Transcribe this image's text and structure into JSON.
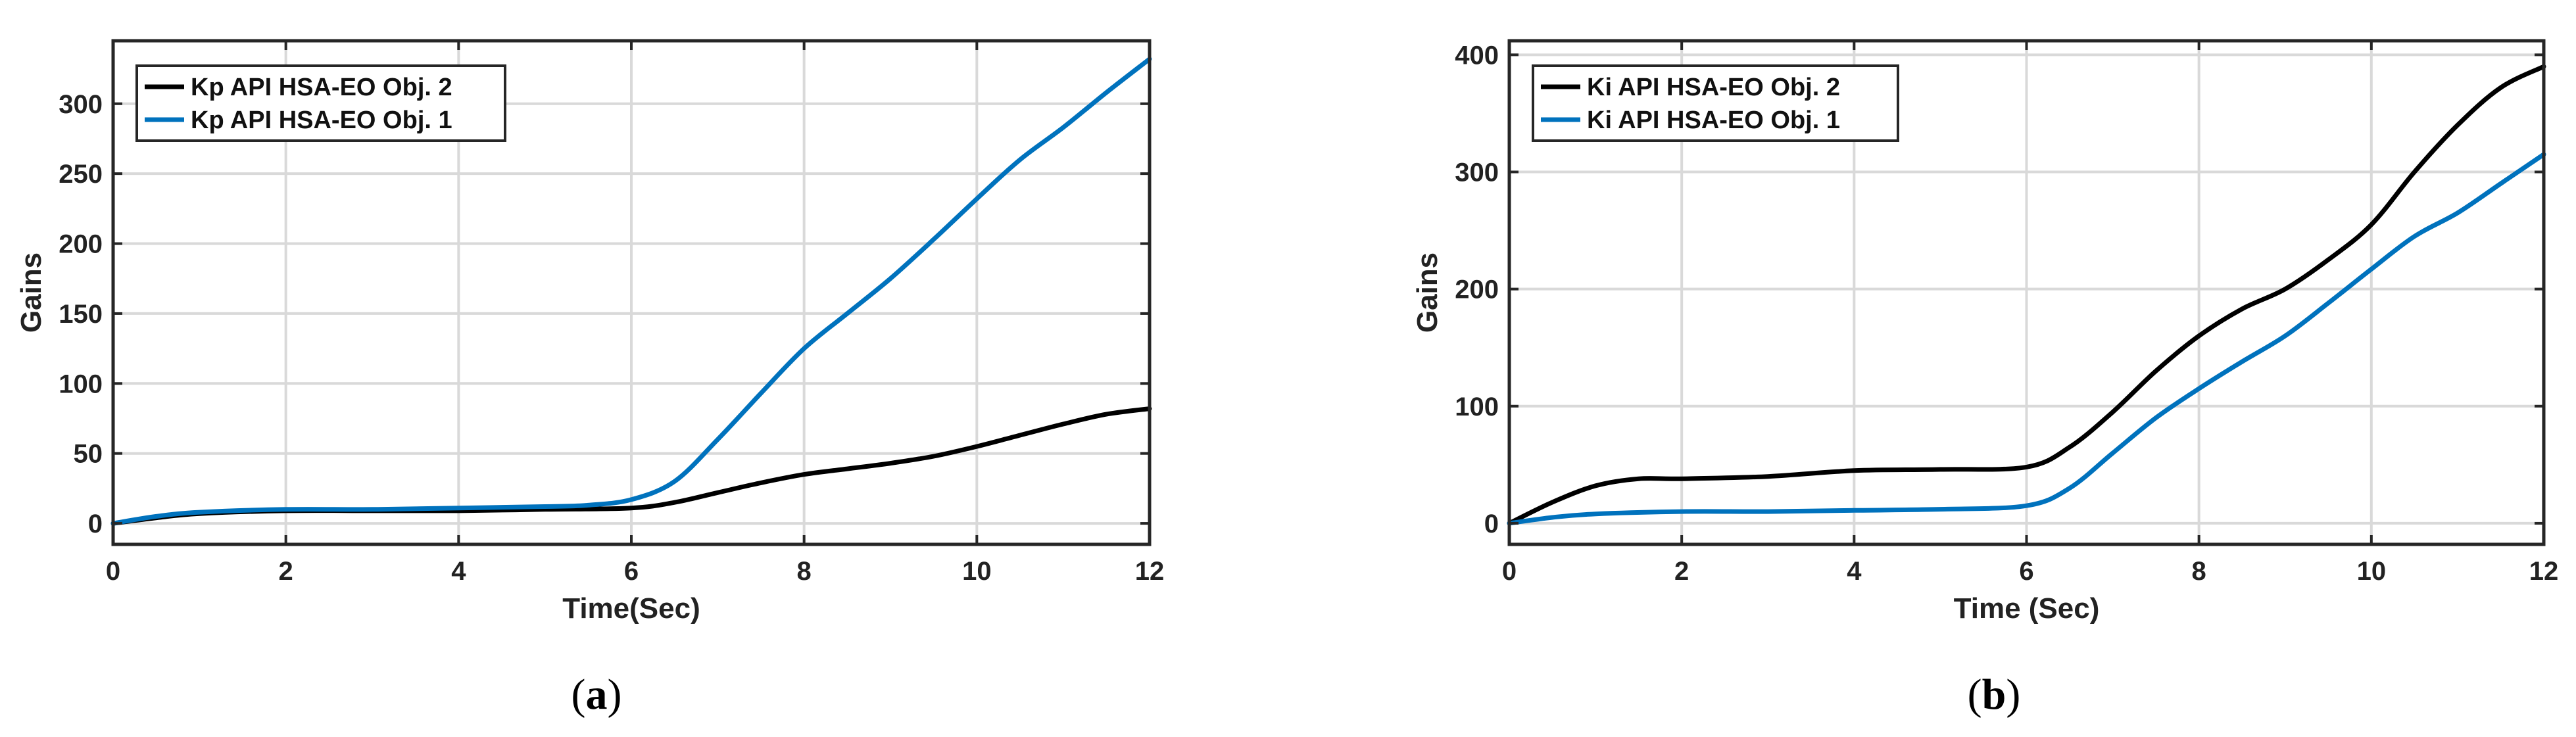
{
  "chart_data": [
    {
      "type": "line",
      "panel_label": "a",
      "xlabel": "Time(Sec)",
      "ylabel": "Gains",
      "xlim": [
        0,
        12
      ],
      "ylim": [
        -15,
        345
      ],
      "xticks": [
        0,
        2,
        4,
        6,
        8,
        10,
        12
      ],
      "yticks": [
        0,
        50,
        100,
        150,
        200,
        250,
        300
      ],
      "grid": true,
      "legend_position": "top-left",
      "series": [
        {
          "name": "Kp API HSA-EO Obj. 2",
          "color": "#000000",
          "x": [
            0,
            0.5,
            1,
            2,
            3,
            4,
            5,
            6,
            6.5,
            7,
            7.5,
            8,
            8.5,
            9,
            9.5,
            10,
            10.5,
            11,
            11.5,
            12
          ],
          "y": [
            0,
            4,
            7,
            9,
            9,
            9,
            10,
            11,
            15,
            22,
            29,
            35,
            39,
            43,
            48,
            55,
            63,
            71,
            78,
            82
          ]
        },
        {
          "name": "Kp API HSA-EO Obj. 1",
          "color": "#0072BD",
          "x": [
            0,
            0.5,
            1,
            2,
            3,
            4,
            5,
            5.5,
            6,
            6.5,
            7,
            7.5,
            8,
            8.5,
            9,
            9.5,
            10,
            10.5,
            11,
            11.5,
            12
          ],
          "y": [
            0,
            5,
            8,
            10,
            10,
            11,
            12,
            13,
            17,
            30,
            60,
            93,
            125,
            150,
            175,
            203,
            232,
            260,
            283,
            308,
            332
          ]
        }
      ]
    },
    {
      "type": "line",
      "panel_label": "b",
      "xlabel": "Time (Sec)",
      "ylabel": "Gains",
      "xlim": [
        0,
        12
      ],
      "ylim": [
        -18,
        412
      ],
      "xticks": [
        0,
        2,
        4,
        6,
        8,
        10,
        12
      ],
      "yticks": [
        0,
        100,
        200,
        300,
        400
      ],
      "grid": true,
      "legend_position": "top-left",
      "series": [
        {
          "name": "Ki API HSA-EO Obj. 2",
          "color": "#000000",
          "x": [
            0,
            0.5,
            1,
            1.5,
            2,
            3,
            4,
            5,
            6,
            6.5,
            7,
            7.5,
            8,
            8.5,
            9,
            9.5,
            10,
            10.5,
            11,
            11.5,
            12
          ],
          "y": [
            0,
            18,
            32,
            38,
            38,
            40,
            45,
            46,
            48,
            65,
            95,
            130,
            160,
            183,
            200,
            225,
            255,
            300,
            340,
            372,
            390
          ]
        },
        {
          "name": "Ki API HSA-EO Obj. 1",
          "color": "#0072BD",
          "x": [
            0,
            0.5,
            1,
            2,
            3,
            4,
            5,
            6,
            6.5,
            7,
            7.5,
            8,
            8.5,
            9,
            9.5,
            10,
            10.5,
            11,
            11.5,
            12
          ],
          "y": [
            0,
            5,
            8,
            10,
            10,
            11,
            12,
            15,
            30,
            60,
            90,
            115,
            138,
            160,
            188,
            217,
            245,
            265,
            290,
            315
          ]
        }
      ]
    }
  ],
  "captions": [
    {
      "paren_open": "(",
      "letter": "a",
      "paren_close": ")"
    },
    {
      "paren_open": "(",
      "letter": "b",
      "paren_close": ")"
    }
  ]
}
